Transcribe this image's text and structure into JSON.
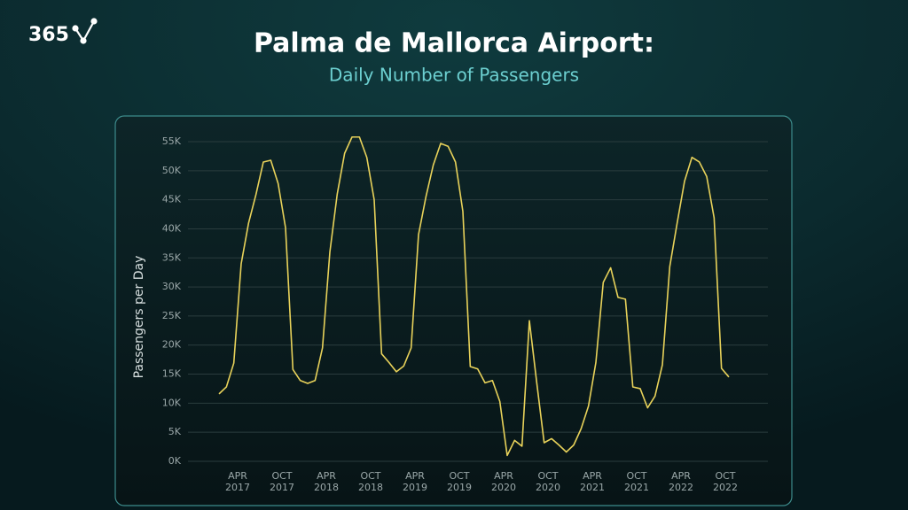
{
  "logo": "365",
  "chart_data": {
    "type": "line",
    "title": "Palma de Mallorca Airport:",
    "subtitle": "Daily Number of Passengers",
    "ylabel": "Passengers per Day",
    "categories": [
      null,
      null,
      null,
      "APR 2017",
      null,
      null,
      null,
      null,
      null,
      "OCT 2017",
      null,
      null,
      null,
      null,
      null,
      "APR 2018",
      null,
      null,
      null,
      null,
      null,
      "OCT 2018",
      null,
      null,
      null,
      null,
      null,
      "APR 2019",
      null,
      null,
      null,
      null,
      null,
      "OCT 2019",
      null,
      null,
      null,
      null,
      null,
      "APR 2020",
      null,
      null,
      null,
      null,
      null,
      "OCT 2020",
      null,
      null,
      null,
      null,
      null,
      "APR 2021",
      null,
      null,
      null,
      null,
      null,
      "OCT 2021",
      null,
      null,
      null,
      null,
      null,
      "APR 2022",
      null,
      null,
      null,
      null,
      null,
      "OCT 2022"
    ],
    "series": [
      {
        "name": "Passengers per Day",
        "color": "#e8d25a",
        "values": [
          11600,
          12800,
          16900,
          34000,
          41000,
          45900,
          51500,
          51800,
          47800,
          40200,
          15800,
          13900,
          13400,
          13900,
          19500,
          36000,
          46000,
          53000,
          55800,
          55800,
          52300,
          45000,
          18500,
          17000,
          15400,
          16400,
          19500,
          39000,
          45500,
          51000,
          54700,
          54200,
          51500,
          43000,
          16300,
          15900,
          13500,
          13900,
          10300,
          1000,
          3600,
          2600,
          24200,
          13500,
          3200,
          3900,
          2800,
          1600,
          2800,
          5600,
          9500,
          17000,
          30800,
          33300,
          28200,
          27900,
          12800,
          12500,
          9200,
          11200,
          16600,
          33500,
          41000,
          48200,
          52300,
          51500,
          49000,
          41900,
          16000,
          14500
        ]
      }
    ],
    "ylim": [
      0,
      55000
    ],
    "yticks": [
      {
        "value": 0,
        "label": "0K"
      },
      {
        "value": 5000,
        "label": "5K"
      },
      {
        "value": 10000,
        "label": "10K"
      },
      {
        "value": 15000,
        "label": "15K"
      },
      {
        "value": 20000,
        "label": "20K"
      },
      {
        "value": 25000,
        "label": "25K"
      },
      {
        "value": 30000,
        "label": "30K"
      },
      {
        "value": 35000,
        "label": "35K"
      },
      {
        "value": 40000,
        "label": "40K"
      },
      {
        "value": 45000,
        "label": "45K"
      },
      {
        "value": 50000,
        "label": "50K"
      },
      {
        "value": 55000,
        "label": "55K"
      }
    ],
    "grid": true
  }
}
